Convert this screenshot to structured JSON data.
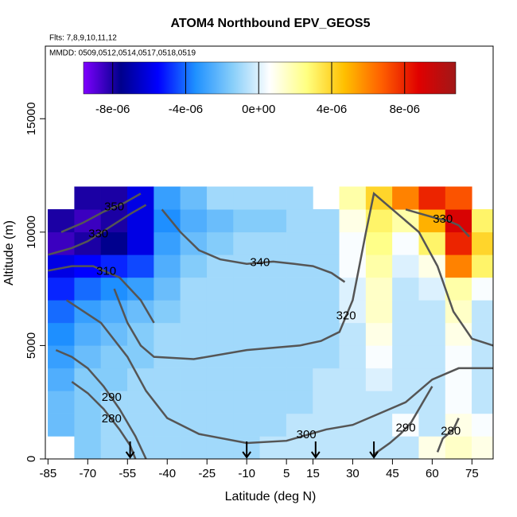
{
  "chart_data": {
    "type": "heatmap",
    "title": "ATOM4 Northbound EPV_GEOS5",
    "subtitle": "Flts: 7,8,9,10,11,12",
    "subtitle2": "MMDD: 0509,0512,0514,0517,0518,0519",
    "x_label": "Latitude (deg N)",
    "y_label": "Altitude (m)",
    "xlim": [
      -86,
      83
    ],
    "ylim": [
      0,
      18200
    ],
    "xticks": [
      -85,
      -70,
      -55,
      -40,
      -25,
      -10,
      5,
      15,
      30,
      45,
      60,
      75
    ],
    "yticks": [
      0,
      5000,
      10000,
      15000
    ],
    "x_edges": [
      -85,
      -75,
      -65,
      -55,
      -45,
      -35,
      -25,
      -15,
      -5,
      5,
      15,
      25,
      35,
      45,
      55,
      65,
      75,
      85
    ],
    "y_edges": [
      0,
      1000,
      2000,
      3000,
      4000,
      5000,
      6000,
      7000,
      8000,
      9000,
      10000,
      11000,
      12000
    ],
    "z": [
      [
        null,
        -1.5e-06,
        -1e-06,
        -1e-06,
        -1e-06,
        -1e-06,
        -1e-06,
        -1e-06,
        -5e-07,
        -5e-07,
        -5e-07,
        -5e-07,
        -5e-07,
        -5e-07,
        1e-06,
        1.5e-06,
        1e-06
      ],
      [
        -2e-06,
        -1.5e-06,
        -1e-06,
        -1e-06,
        -1e-06,
        -1e-06,
        -1e-06,
        -1e-06,
        -1e-06,
        -5e-07,
        -5e-07,
        -5e-07,
        -5e-07,
        5e-07,
        -5e-07,
        1e-06,
        5e-07
      ],
      [
        -2e-06,
        -1.5e-06,
        -1e-06,
        -1e-06,
        -1e-06,
        -1e-06,
        -1e-06,
        -1e-06,
        -1e-06,
        -1e-06,
        -5e-07,
        -5e-07,
        -5e-07,
        -5e-07,
        -5e-07,
        5e-07,
        -5e-07
      ],
      [
        -2.5e-06,
        -1.5e-06,
        -1.5e-06,
        -1e-06,
        -1e-06,
        -1e-06,
        -1e-06,
        -1e-06,
        -1e-06,
        -1e-06,
        -5e-07,
        -5e-07,
        0,
        -5e-07,
        -5e-07,
        5e-07,
        -5e-07
      ],
      [
        -3e-06,
        -2e-06,
        -1.5e-06,
        -1.5e-06,
        -1e-06,
        -1e-06,
        -1e-06,
        -1e-06,
        -1e-06,
        -1e-06,
        -1e-06,
        -5e-07,
        5e-07,
        -5e-07,
        -5e-07,
        5e-07,
        -5e-07
      ],
      [
        -3.5e-06,
        -2.5e-06,
        -2e-06,
        -1.5e-06,
        -1e-06,
        -1e-06,
        -1e-06,
        -1e-06,
        -1e-06,
        -1e-06,
        -1e-06,
        -5e-07,
        1e-06,
        -5e-07,
        -5e-07,
        1e-06,
        -5e-07
      ],
      [
        -4e-06,
        -3e-06,
        -2.5e-06,
        -2e-06,
        -1.5e-06,
        -1e-06,
        -1e-06,
        -1e-06,
        -1e-06,
        -1e-06,
        -1e-06,
        0,
        1.5e-06,
        -5e-07,
        -5e-07,
        1.5e-06,
        -5e-07
      ],
      [
        -5e-06,
        -4e-06,
        -3.5e-06,
        -3e-06,
        -2e-06,
        -1e-06,
        -1e-06,
        -1e-06,
        -1e-06,
        -1e-06,
        -1e-06,
        0,
        1.5e-06,
        -5e-07,
        0,
        2e-06,
        5e-07
      ],
      [
        -6e-06,
        -5.5e-06,
        -5e-06,
        -4.5e-06,
        -2.5e-06,
        -1.5e-06,
        -1e-06,
        -1e-06,
        -1e-06,
        -1e-06,
        -1e-06,
        5e-07,
        2e-06,
        0,
        1e-06,
        6e-06,
        3e-06
      ],
      [
        -8.5e-06,
        -8e-06,
        -7.5e-06,
        -6e-06,
        -3e-06,
        -2e-06,
        -1.5e-06,
        -1e-06,
        -1e-06,
        -1e-06,
        -1e-06,
        5e-07,
        2.5e-06,
        5e-07,
        3e-06,
        8e-06,
        4e-06
      ],
      [
        -8e-06,
        -8.5e-06,
        -8e-06,
        -6e-06,
        -3.5e-06,
        -2.5e-06,
        -2e-06,
        -1.5e-06,
        -1.5e-06,
        -1e-06,
        -1e-06,
        1e-06,
        3e-06,
        2e-06,
        5e-06,
        9e-06,
        3e-06
      ],
      [
        null,
        -8e-06,
        -8e-06,
        -6e-06,
        -3e-06,
        -2e-06,
        -1e-06,
        -1e-06,
        -1e-06,
        -1e-06,
        null,
        2e-06,
        4e-06,
        6e-06,
        8e-06,
        7e-06,
        null
      ]
    ],
    "clim": [
      -9.6e-06,
      1.08e-05
    ],
    "colors": [
      "#7f00ff",
      "#00008b",
      "#0000ff",
      "#1e90ff",
      "#87cefa",
      "#ffffff",
      "#ffff80",
      "#ffc000",
      "#ff6000",
      "#e00000",
      "#a01818"
    ],
    "cticks": [
      {
        "value": -8e-06,
        "label": "-8e-06"
      },
      {
        "value": -4e-06,
        "label": "-4e-06"
      },
      {
        "value": 0,
        "label": "0e+00"
      },
      {
        "value": 4e-06,
        "label": "4e-06"
      },
      {
        "value": 8e-06,
        "label": "8e-06"
      }
    ],
    "contours": [
      {
        "level": 280,
        "lat": [
          -76,
          -70,
          -64,
          -58,
          -54,
          -52
        ],
        "alt": [
          3400,
          2900,
          2200,
          1300,
          600,
          0
        ]
      },
      {
        "level": 290,
        "lat": [
          -82,
          -76,
          -70,
          -64,
          -58,
          -52,
          -48
        ],
        "alt": [
          4800,
          4500,
          4000,
          3200,
          2200,
          1000,
          0
        ]
      },
      {
        "level": 290,
        "lat": [
          38,
          44,
          48,
          52,
          56,
          60
        ],
        "alt": [
          200,
          700,
          1100,
          1600,
          2400,
          3200
        ]
      },
      {
        "level": 280,
        "lat": [
          62,
          64,
          66,
          68,
          70
        ],
        "alt": [
          300,
          900,
          1100,
          1300,
          1800
        ]
      },
      {
        "level": 300,
        "lat": [
          -78,
          -65,
          -55,
          -48,
          -40,
          -28,
          -10,
          5,
          20,
          30,
          40,
          50,
          60,
          70,
          83
        ],
        "alt": [
          7000,
          6000,
          4500,
          3000,
          1800,
          1100,
          700,
          800,
          1300,
          1500,
          2000,
          2500,
          3500,
          4000,
          4000
        ]
      },
      {
        "level": 320,
        "lat": [
          -60,
          -55,
          -50,
          -45,
          -30,
          -10,
          10,
          18,
          25,
          30,
          35,
          38,
          45,
          55,
          62,
          68,
          75,
          83
        ],
        "alt": [
          7500,
          6000,
          5000,
          4500,
          4400,
          4800,
          5000,
          5200,
          5600,
          7000,
          10000,
          11700,
          11000,
          10000,
          8500,
          6500,
          5300,
          5000
        ]
      },
      {
        "level": 340,
        "lat": [
          -42,
          -35,
          -28,
          -20,
          -10,
          0,
          8,
          15,
          22,
          27
        ],
        "alt": [
          11000,
          10000,
          9200,
          8800,
          8600,
          8700,
          8600,
          8500,
          8200,
          7800
        ]
      },
      {
        "level": 310,
        "lat": [
          -85,
          -76,
          -68,
          -58,
          -50,
          -45
        ],
        "alt": [
          8300,
          8500,
          8500,
          8000,
          7000,
          6000
        ]
      },
      {
        "level": 330,
        "lat": [
          -85,
          -76,
          -70,
          -62,
          -54,
          -48
        ],
        "alt": [
          9000,
          9300,
          9600,
          10200,
          10800,
          11200
        ]
      },
      {
        "level": 350,
        "lat": [
          -80,
          -72,
          -64,
          -56,
          -50
        ],
        "alt": [
          10000,
          10400,
          10900,
          11300,
          11700
        ]
      },
      {
        "level": 330,
        "lat": [
          50,
          56,
          62,
          66,
          70,
          74
        ],
        "alt": [
          11000,
          10800,
          10600,
          10500,
          10300,
          9800
        ]
      }
    ],
    "arrows_x": [
      -54,
      -10,
      16,
      38
    ]
  }
}
